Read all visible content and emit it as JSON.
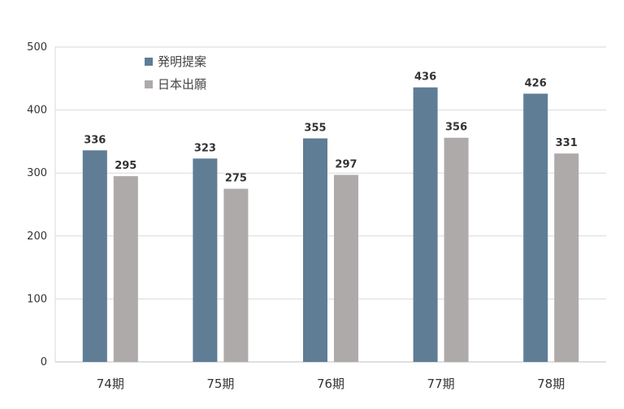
{
  "chart_data": {
    "type": "bar",
    "categories": [
      "74期",
      "75期",
      "76期",
      "77期",
      "78期"
    ],
    "series": [
      {
        "name": "発明提案",
        "color": "#5f7d95",
        "values": [
          336,
          323,
          355,
          436,
          426
        ]
      },
      {
        "name": "日本出願",
        "color": "#aeaaaa",
        "values": [
          295,
          275,
          297,
          356,
          331
        ]
      }
    ],
    "ylim": [
      0,
      500
    ],
    "yticks": [
      0,
      100,
      200,
      300,
      400,
      500
    ],
    "grid": true,
    "legend_position": "top-left",
    "data_labels": true,
    "xlabel": "",
    "ylabel": ""
  }
}
